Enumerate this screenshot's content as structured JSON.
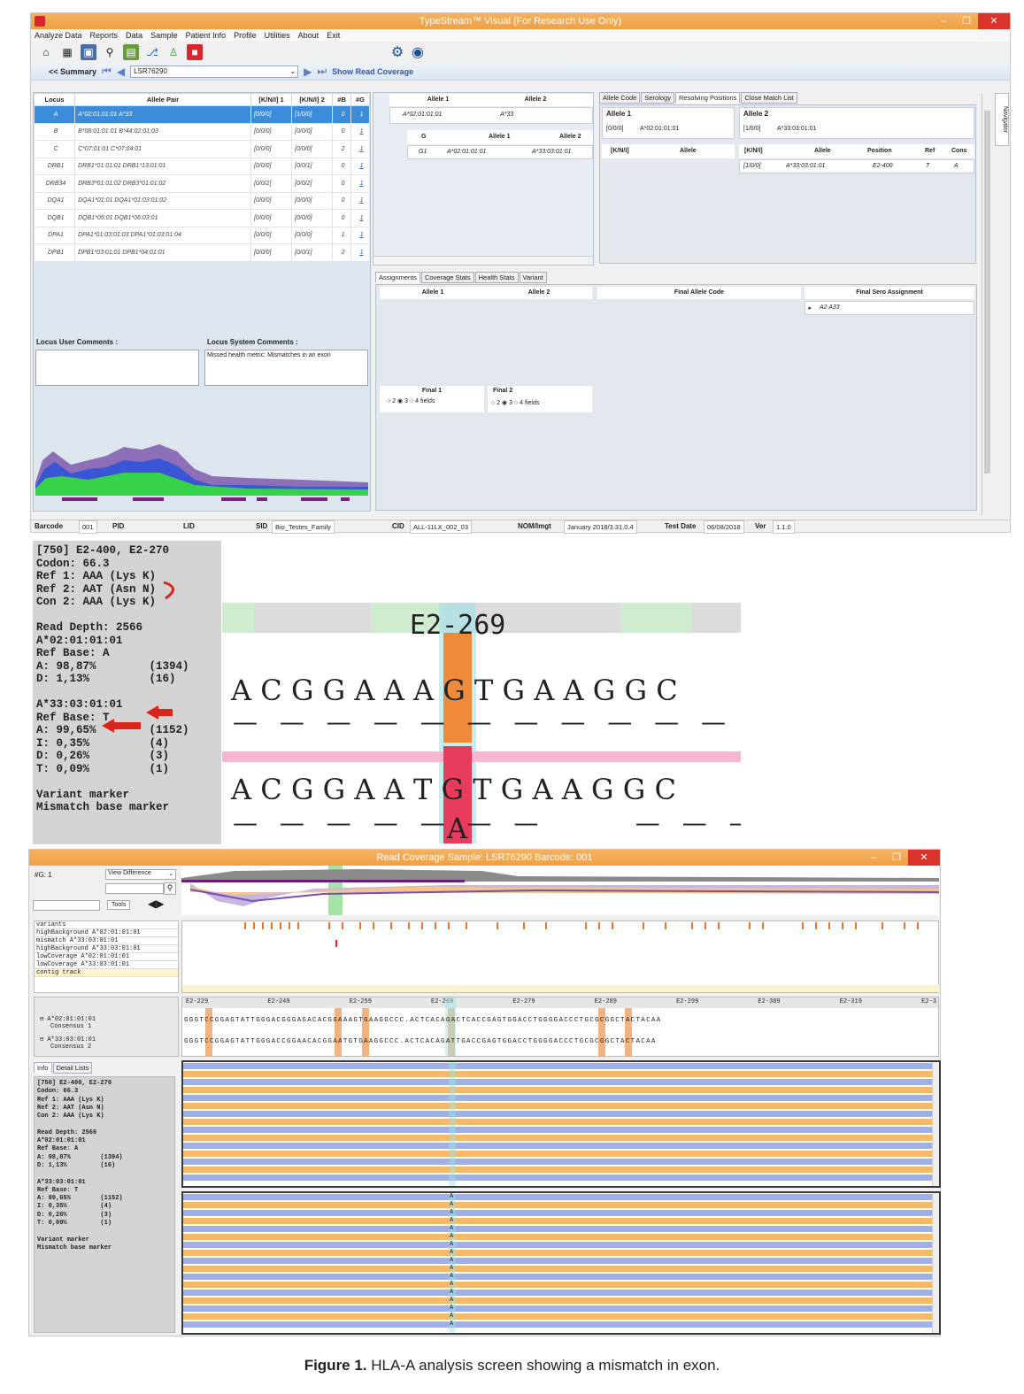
{
  "window1": {
    "title": "TypeStream™ Visual (For Research Use Only)",
    "menu": [
      "Analyze Data",
      "Reports",
      "Data",
      "Sample",
      "Patient Info",
      "Profile",
      "Utilities",
      "About",
      "Exit"
    ],
    "toolbar_icons": [
      "home-icon",
      "building-icon",
      "save-icon",
      "search-icon",
      "grid-icon",
      "network-icon",
      "user-icon",
      "flag-icon",
      "gear-icon",
      "user-circle-icon"
    ],
    "summary_label": "<< Summary",
    "sample_combo": "LSR76290",
    "show_read_coverage": "Show Read Coverage",
    "locus_table": {
      "headers": [
        "Locus",
        "Allele Pair",
        "[K/N/I] 1",
        "[K/N/I] 2",
        "#B",
        "#G"
      ],
      "rows": [
        [
          "A",
          "A*02:01:01:01 A*33",
          "[0/0/0]",
          "[1/0/0]",
          "0",
          "1"
        ],
        [
          "B",
          "B*08:01:01:01 B*44:02:01:03",
          "[0/0/0]",
          "[0/0/0]",
          "0",
          "1"
        ],
        [
          "C",
          "C*07:01:01 C*07:04:01",
          "[0/0/0]",
          "[0/0/0]",
          "2",
          "1"
        ],
        [
          "DRB1",
          "DRB1*01:01:01 DRB1*13:01:01",
          "[0/0/0]",
          "[0/0/1]",
          "0",
          "1"
        ],
        [
          "DRB34",
          "DRB3*01:01:02 DRB3*01:01:02",
          "[0/0/2]",
          "[0/0/2]",
          "0",
          "1"
        ],
        [
          "DQA1",
          "DQA1*01:01 DQA1*01:03:01:02",
          "[0/0/0]",
          "[0/0/0]",
          "0",
          "1"
        ],
        [
          "DQB1",
          "DQB1*05:01 DQB1*06:03:01",
          "[0/0/0]",
          "[0/0/0]",
          "0",
          "1"
        ],
        [
          "DPA1",
          "DPA1*01:03:01:03 DPA1*01:03:01:04",
          "[0/0/0]",
          "[0/0/0]",
          "1",
          "1"
        ],
        [
          "DPB1",
          "DPB1*03:01:01 DPB1*04:01:01",
          "[0/0/0]",
          "[0/0/1]",
          "2",
          "1"
        ]
      ]
    },
    "locus_user_comments": "Locus User Comments :",
    "locus_system_comments": "Locus System Comments :",
    "system_comment_text": "Missed health metric: Mismatches in an exon",
    "allele_panel": {
      "allele1_header": "Allele 1",
      "allele2_header": "Allele 2",
      "allele1_value": "A*02:01:01:01",
      "allele2_value": "A*33",
      "g_header": "G",
      "g_allele1": "Allele 1",
      "g_allele2": "Allele 2",
      "g_row": [
        "G1",
        "A*02:01:01:01",
        "A*33:03:01:01"
      ]
    },
    "right_tabs": [
      "Allele Code",
      "Serology",
      "Resolving Positions",
      "Close Match List"
    ],
    "resolving": {
      "allele1_title": "Allele 1",
      "allele1_knl": "[0/0/0]",
      "allele1_value": "A*02:01:01:01",
      "allele2_title": "Allele 2",
      "allele2_knl": "[1/0/0]",
      "allele2_value": "A*33:03:01:01",
      "headers_left": [
        "[K/N/I]",
        "Allele"
      ],
      "headers_right": [
        "[K/N/I]",
        "Allele",
        "Position",
        "Ref",
        "Cons"
      ],
      "row": [
        "[1/0/0]",
        "A*33:03:01:01",
        "E2-400",
        "T",
        "A"
      ]
    },
    "bottom_tabs": [
      "Assignments",
      "Coverage Stats",
      "Health Stats",
      "Variant"
    ],
    "assign_headers": [
      "Allele 1",
      "Allele 2"
    ],
    "final_allele_code": "Final Allele Code",
    "final_sero": "Final Sero Assignment",
    "final_sero_value": "A2 A33",
    "final1": {
      "label": "Final 1",
      "options": [
        "2",
        "3",
        "4 fields"
      ],
      "selected": "3"
    },
    "final2": {
      "label": "Final 2",
      "options": [
        "2",
        "3",
        "4 fields"
      ],
      "selected": "3"
    },
    "navigator": "Navigator",
    "status": {
      "barcode_label": "Barcode",
      "barcode": "001",
      "pid_label": "PID",
      "lid_label": "LID",
      "sid_label": "SID",
      "sid": "Bio_Testes_Family",
      "cid_label": "CID",
      "cid": "ALL-11LX_002_03",
      "nom_label": "NOM/Imgt",
      "nom": "January 2018/3.31.0.4",
      "test_date_label": "Test Date",
      "test_date": "06/08/2018",
      "ver_label": "Ver",
      "ver": "1.1.0"
    }
  },
  "zoom_info": {
    "lines": [
      "[750] E2-400, E2-270",
      "Codon: 66.3",
      "Ref 1: AAA (Lys K)",
      "Ref 2: AAT (Asn N)",
      "Con 2: AAA (Lys K)",
      "",
      "Read Depth: 2566",
      "A*02:01:01:01",
      "Ref Base: A",
      "A: 98,87%        (1394)",
      "D: 1,13%         (16)",
      "",
      "A*33:03:01:01",
      "Ref Base: T",
      "A: 99,65%        (1152)",
      "I: 0,35%         (4)",
      "D: 0,26%         (3)",
      "T: 0,09%         (1)",
      "",
      "Variant marker",
      "Mismatch base marker"
    ]
  },
  "zoom_seq": {
    "position_label": "E2-269",
    "consensus1": "ACGGAAAGTGAAGGC",
    "consensus2": "ACGGAATGTGAAGGC",
    "read_base": "A"
  },
  "window2": {
    "title": "Read Coverage Sample: LSR76290 Barcode: 001",
    "g_label": "#G: 1",
    "view_mode": "View Difference",
    "tools_label": "Tools",
    "tracks": [
      "variants",
      "highBackground A*02:01:01:01",
      "mismatch A*33:03:01:01",
      "highBackground A*33:03:01:01",
      "lowCoverage A*02:01:01:01",
      "lowCoverage A*33:03:01:01",
      "contig track"
    ],
    "consensus": [
      {
        "allele": "A*02:01:01:01",
        "label": "Consensus 1"
      },
      {
        "allele": "A*33:03:01:01",
        "label": "Consensus 2"
      }
    ],
    "ruler": [
      "E2-229",
      "E2-249",
      "E2-259",
      "E2-269",
      "E2-279",
      "E2-289",
      "E2-299",
      "E2-309",
      "E2-319",
      "E2-3"
    ],
    "consensus_seq1": "GGGTCCGGAGTATTGGGACGGGAGACACGGAAAGTGAAGGCCC.ACTCACAGACTCACCGAGTGGACCTGGGGACCCTGCGCGGCTACTACAA",
    "consensus_seq2": "GGGTCCGGAGTATTGGGACCGGAACACGGAATGTGAAGGCCC.ACTCACAGATTGACCGAGTGGACCTGGGGACCCTGCGCGGCTACTACAA",
    "info_tabs": [
      "Info",
      "Detail Lists"
    ],
    "read_base": "A"
  },
  "caption_bold": "Figure 1.",
  "caption_text": " HLA-A analysis screen showing a mismatch in exon."
}
